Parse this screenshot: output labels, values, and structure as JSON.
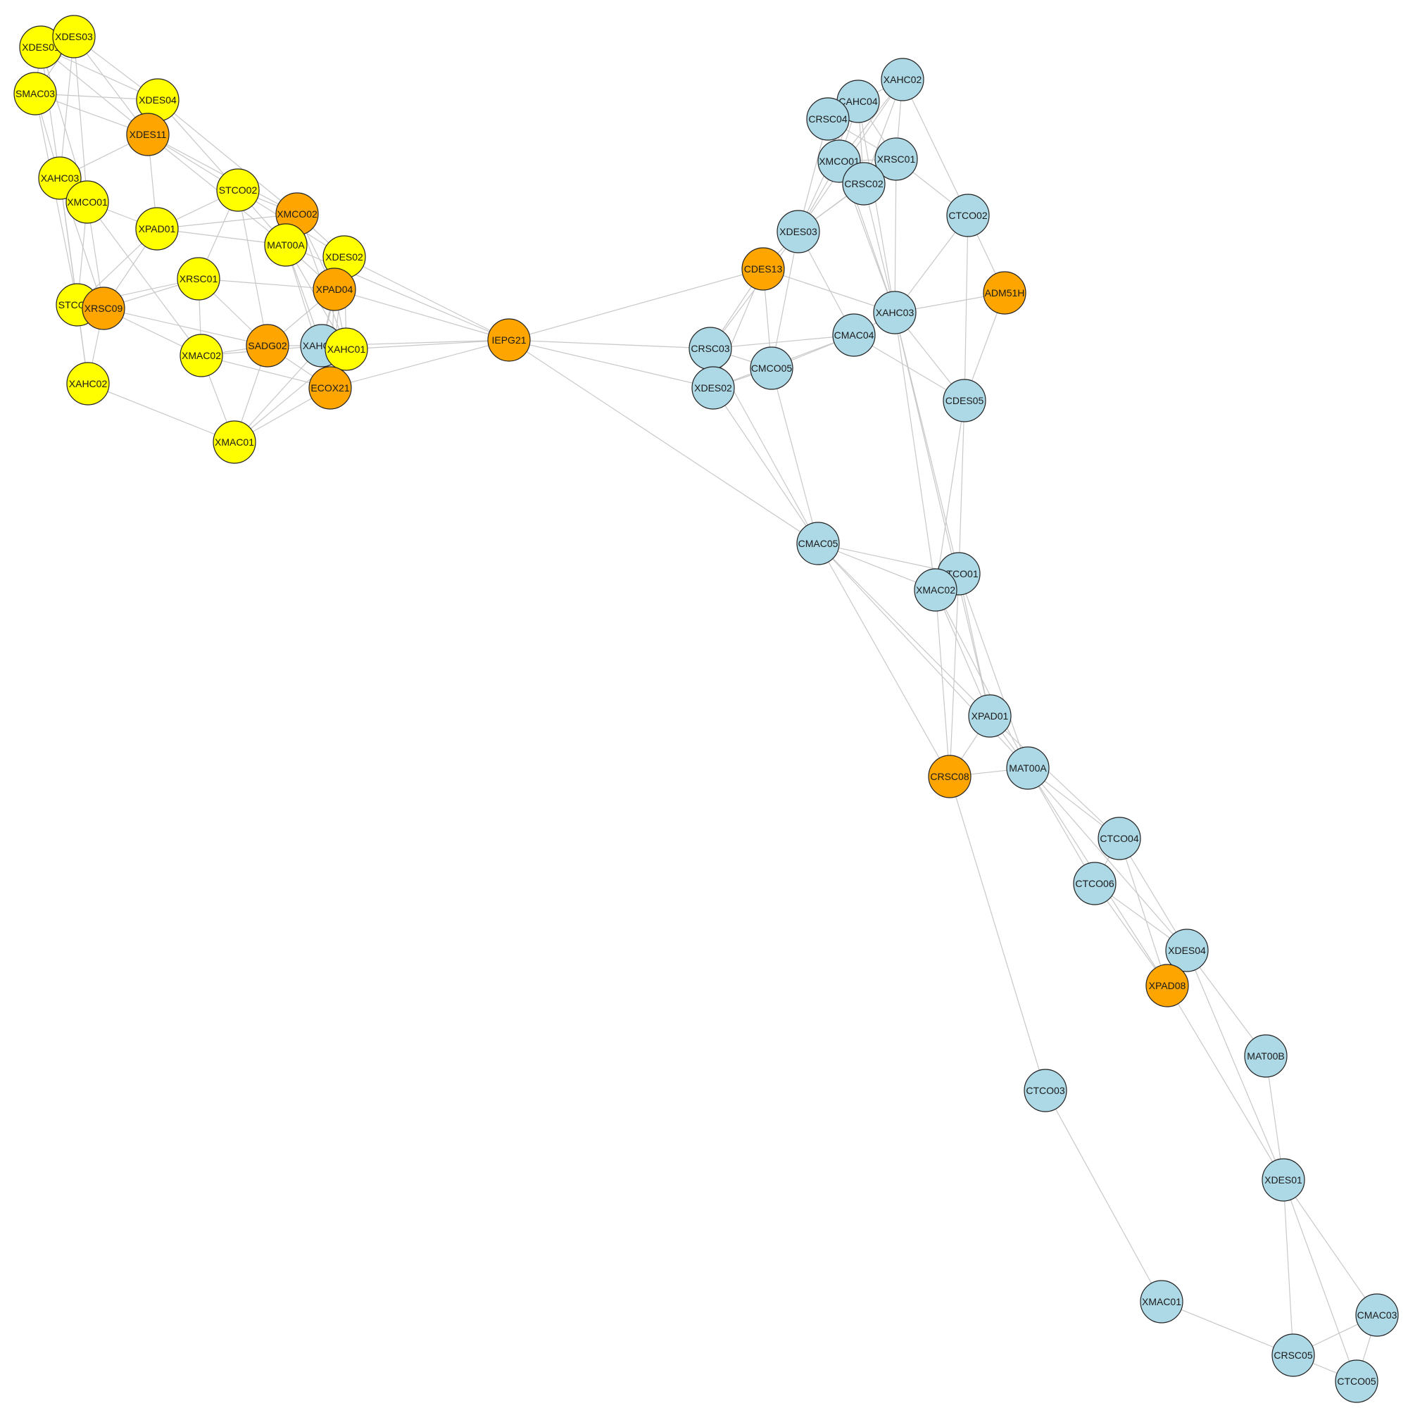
{
  "colors": {
    "yellow": "#ffff00",
    "orange": "#ffa500",
    "blue": "#add8e6"
  },
  "nodes": [
    {
      "id": "L_XDES01",
      "label": "XDES01",
      "color": "yellow"
    },
    {
      "id": "L_XDES03",
      "label": "XDES03",
      "color": "yellow"
    },
    {
      "id": "L_SMAC03",
      "label": "SMAC03",
      "color": "yellow"
    },
    {
      "id": "L_XDES04",
      "label": "XDES04",
      "color": "yellow"
    },
    {
      "id": "L_XDES11",
      "label": "XDES11",
      "color": "orange"
    },
    {
      "id": "L_XAHC03",
      "label": "XAHC03",
      "color": "yellow"
    },
    {
      "id": "L_XMCO01",
      "label": "XMCO01",
      "color": "yellow"
    },
    {
      "id": "L_STCO02",
      "label": "STCO02",
      "color": "yellow"
    },
    {
      "id": "L_XMCO02",
      "label": "XMCO02",
      "color": "orange"
    },
    {
      "id": "L_XPAD01",
      "label": "XPAD01",
      "color": "yellow"
    },
    {
      "id": "L_MAT00A",
      "label": "MAT00A",
      "color": "yellow"
    },
    {
      "id": "L_XDES02",
      "label": "XDES02",
      "color": "yellow"
    },
    {
      "id": "L_XRSC01",
      "label": "XRSC01",
      "color": "yellow"
    },
    {
      "id": "L_XPAD04",
      "label": "XPAD04",
      "color": "orange"
    },
    {
      "id": "L_STCO01",
      "label": "STCO01",
      "color": "yellow"
    },
    {
      "id": "L_XRSC09",
      "label": "XRSC09",
      "color": "orange"
    },
    {
      "id": "L_SADG02",
      "label": "SADG02",
      "color": "orange"
    },
    {
      "id": "L_XAHC04",
      "label": "XAHC04",
      "color": "blue"
    },
    {
      "id": "L_XAHC01",
      "label": "XAHC01",
      "color": "yellow"
    },
    {
      "id": "L_XMAC02",
      "label": "XMAC02",
      "color": "yellow"
    },
    {
      "id": "L_ECOX21",
      "label": "ECOX21",
      "color": "orange"
    },
    {
      "id": "L_XAHC02",
      "label": "XAHC02",
      "color": "yellow"
    },
    {
      "id": "L_XMAC01",
      "label": "XMAC01",
      "color": "yellow"
    },
    {
      "id": "IEPG21",
      "label": "IEPG21",
      "color": "orange"
    },
    {
      "id": "R_XAHC02",
      "label": "XAHC02",
      "color": "blue"
    },
    {
      "id": "R_CAHC04",
      "label": "CAHC04",
      "color": "blue"
    },
    {
      "id": "R_CRSC04",
      "label": "CRSC04",
      "color": "blue"
    },
    {
      "id": "R_XMCO01",
      "label": "XMCO01",
      "color": "blue"
    },
    {
      "id": "R_XRSC01",
      "label": "XRSC01",
      "color": "blue"
    },
    {
      "id": "R_CRSC02",
      "label": "CRSC02",
      "color": "blue"
    },
    {
      "id": "R_CTCO02",
      "label": "CTCO02",
      "color": "blue"
    },
    {
      "id": "R_XDES03",
      "label": "XDES03",
      "color": "blue"
    },
    {
      "id": "R_CDES13",
      "label": "CDES13",
      "color": "orange"
    },
    {
      "id": "R_ADM51H",
      "label": "ADM51H",
      "color": "orange"
    },
    {
      "id": "R_XAHC03",
      "label": "XAHC03",
      "color": "blue"
    },
    {
      "id": "R_CMAC04",
      "label": "CMAC04",
      "color": "blue"
    },
    {
      "id": "R_CRSC03",
      "label": "CRSC03",
      "color": "blue"
    },
    {
      "id": "R_CMCO05",
      "label": "CMCO05",
      "color": "blue"
    },
    {
      "id": "R_XDES02",
      "label": "XDES02",
      "color": "blue"
    },
    {
      "id": "R_CDES05",
      "label": "CDES05",
      "color": "blue"
    },
    {
      "id": "R_CMAC05",
      "label": "CMAC05",
      "color": "blue"
    },
    {
      "id": "R_CTCO01",
      "label": "CTCO01",
      "color": "blue"
    },
    {
      "id": "R_XMAC02",
      "label": "XMAC02",
      "color": "blue"
    },
    {
      "id": "R_XPAD01",
      "label": "XPAD01",
      "color": "blue"
    },
    {
      "id": "R_CRSC08",
      "label": "CRSC08",
      "color": "orange"
    },
    {
      "id": "R_MAT00A",
      "label": "MAT00A",
      "color": "blue"
    },
    {
      "id": "R_CTCO04",
      "label": "CTCO04",
      "color": "blue"
    },
    {
      "id": "R_CTCO06",
      "label": "CTCO06",
      "color": "blue"
    },
    {
      "id": "R_XDES04",
      "label": "XDES04",
      "color": "blue"
    },
    {
      "id": "R_XPAD08",
      "label": "XPAD08",
      "color": "orange"
    },
    {
      "id": "R_MAT00B",
      "label": "MAT00B",
      "color": "blue"
    },
    {
      "id": "R_CTCO03",
      "label": "CTCO03",
      "color": "blue"
    },
    {
      "id": "R_XDES01",
      "label": "XDES01",
      "color": "blue"
    },
    {
      "id": "R_XMAC01",
      "label": "XMAC01",
      "color": "blue"
    },
    {
      "id": "R_CMAC03",
      "label": "CMAC03",
      "color": "blue"
    },
    {
      "id": "R_CRSC05",
      "label": "CRSC05",
      "color": "blue"
    },
    {
      "id": "R_CTCO05",
      "label": "CTCO05",
      "color": "blue"
    }
  ],
  "edges": [
    [
      "L_XDES01",
      "L_XDES03"
    ],
    [
      "L_XDES01",
      "L_SMAC03"
    ],
    [
      "L_XDES01",
      "L_XDES11"
    ],
    [
      "L_XDES01",
      "L_XAHC03"
    ],
    [
      "L_XDES01",
      "L_XMCO01"
    ],
    [
      "L_XDES01",
      "L_XDES04"
    ],
    [
      "L_XDES03",
      "L_XDES04"
    ],
    [
      "L_XDES03",
      "L_XDES11"
    ],
    [
      "L_XDES03",
      "L_XAHC03"
    ],
    [
      "L_XDES03",
      "L_SMAC03"
    ],
    [
      "L_XDES03",
      "L_XMCO01"
    ],
    [
      "L_SMAC03",
      "L_XDES04"
    ],
    [
      "L_SMAC03",
      "L_XDES11"
    ],
    [
      "L_SMAC03",
      "L_XAHC03"
    ],
    [
      "L_SMAC03",
      "L_STCO01"
    ],
    [
      "L_XDES04",
      "L_XDES11"
    ],
    [
      "L_XDES04",
      "L_STCO02"
    ],
    [
      "L_XDES04",
      "L_XMCO02"
    ],
    [
      "L_XDES11",
      "L_XAHC03"
    ],
    [
      "L_XDES11",
      "L_STCO02"
    ],
    [
      "L_XDES11",
      "L_XPAD01"
    ],
    [
      "L_XDES11",
      "L_XMCO02"
    ],
    [
      "L_XDES11",
      "L_MAT00A"
    ],
    [
      "L_XAHC03",
      "L_XMCO01"
    ],
    [
      "L_XAHC03",
      "L_STCO01"
    ],
    [
      "L_XAHC03",
      "L_XRSC09"
    ],
    [
      "L_XAHC03",
      "L_XAHC02"
    ],
    [
      "L_XMCO01",
      "L_XRSC09"
    ],
    [
      "L_XMCO01",
      "L_XPAD01"
    ],
    [
      "L_XMCO01",
      "L_XMAC02"
    ],
    [
      "L_XMCO01",
      "L_STCO01"
    ],
    [
      "L_STCO02",
      "L_XMCO02"
    ],
    [
      "L_STCO02",
      "L_MAT00A"
    ],
    [
      "L_STCO02",
      "L_XPAD01"
    ],
    [
      "L_STCO02",
      "L_XRSC01"
    ],
    [
      "L_STCO02",
      "L_SADG02"
    ],
    [
      "L_STCO02",
      "L_XDES02"
    ],
    [
      "L_XMCO02",
      "L_MAT00A"
    ],
    [
      "L_XMCO02",
      "L_XDES02"
    ],
    [
      "L_XMCO02",
      "L_XPAD04"
    ],
    [
      "L_XMCO02",
      "L_IEPG21"
    ],
    [
      "L_XMCO02",
      "L_XAHC01"
    ],
    [
      "L_XPAD01",
      "L_XRSC09"
    ],
    [
      "L_XPAD01",
      "L_STCO01"
    ],
    [
      "L_XPAD01",
      "L_MAT00A"
    ],
    [
      "L_XPAD01",
      "L_XMCO02"
    ],
    [
      "L_MAT00A",
      "L_XAHC04"
    ],
    [
      "L_MAT00A",
      "L_XAHC01"
    ],
    [
      "L_MAT00A",
      "L_ECOX21"
    ],
    [
      "L_MAT00A",
      "L_XPAD04"
    ],
    [
      "L_MAT00A",
      "IEPG21"
    ],
    [
      "L_XDES02",
      "L_XPAD04"
    ],
    [
      "L_XDES02",
      "L_XAHC04"
    ],
    [
      "L_XDES02",
      "L_XAHC01"
    ],
    [
      "L_XDES02",
      "IEPG21"
    ],
    [
      "L_XDES02",
      "L_ECOX21"
    ],
    [
      "L_XRSC01",
      "L_XRSC09"
    ],
    [
      "L_XRSC01",
      "L_XMAC02"
    ],
    [
      "L_XRSC01",
      "L_XPAD04"
    ],
    [
      "L_XRSC01",
      "L_SADG02"
    ],
    [
      "L_XRSC01",
      "L_STCO01"
    ],
    [
      "L_XPAD04",
      "L_XAHC04"
    ],
    [
      "L_XPAD04",
      "L_XAHC01"
    ],
    [
      "L_XPAD04",
      "L_SADG02"
    ],
    [
      "L_XPAD04",
      "L_ECOX21"
    ],
    [
      "L_XPAD04",
      "IEPG21"
    ],
    [
      "L_STCO01",
      "L_XRSC09"
    ],
    [
      "L_STCO01",
      "L_XAHC02"
    ],
    [
      "L_XRSC09",
      "L_XMAC02"
    ],
    [
      "L_XRSC09",
      "L_XAHC02"
    ],
    [
      "L_XRSC09",
      "L_SADG02"
    ],
    [
      "L_SADG02",
      "L_XAHC04"
    ],
    [
      "L_SADG02",
      "L_XMAC01"
    ],
    [
      "L_SADG02",
      "L_XMAC02"
    ],
    [
      "L_SADG02",
      "L_ECOX21"
    ],
    [
      "L_XAHC04",
      "L_XAHC01"
    ],
    [
      "L_XAHC04",
      "L_ECOX21"
    ],
    [
      "L_XAHC04",
      "L_XMAC01"
    ],
    [
      "L_XAHC04",
      "IEPG21"
    ],
    [
      "L_XAHC01",
      "L_ECOX21"
    ],
    [
      "L_XAHC01",
      "IEPG21"
    ],
    [
      "L_XAHC01",
      "L_XMAC01"
    ],
    [
      "L_XMAC02",
      "L_XMAC01"
    ],
    [
      "L_XMAC02",
      "L_ECOX21"
    ],
    [
      "L_XMAC02",
      "L_XAHC04"
    ],
    [
      "L_ECOX21",
      "L_XMAC01"
    ],
    [
      "L_ECOX21",
      "IEPG21"
    ],
    [
      "L_XAHC02",
      "L_XMAC01"
    ],
    [
      "IEPG21",
      "R_CDES13"
    ],
    [
      "IEPG21",
      "R_CRSC03"
    ],
    [
      "IEPG21",
      "R_XDES02"
    ],
    [
      "IEPG21",
      "R_CMAC05"
    ],
    [
      "R_XAHC02",
      "R_CAHC04"
    ],
    [
      "R_XAHC02",
      "R_XMCO01"
    ],
    [
      "R_XAHC02",
      "R_XRSC01"
    ],
    [
      "R_XAHC02",
      "R_CTCO02"
    ],
    [
      "R_XAHC02",
      "R_XDES03"
    ],
    [
      "R_XAHC02",
      "R_CRSC02"
    ],
    [
      "R_CAHC04",
      "R_CRSC04"
    ],
    [
      "R_CAHC04",
      "R_XRSC01"
    ],
    [
      "R_CAHC04",
      "R_XMCO01"
    ],
    [
      "R_CAHC04",
      "R_XDES03"
    ],
    [
      "R_CAHC04",
      "R_XAHC03"
    ],
    [
      "R_CAHC04",
      "R_CRSC02"
    ],
    [
      "R_CRSC04",
      "R_XMCO01"
    ],
    [
      "R_CRSC04",
      "R_XRSC01"
    ],
    [
      "R_CRSC04",
      "R_CRSC02"
    ],
    [
      "R_CRSC04",
      "R_XDES03"
    ],
    [
      "R_CRSC04",
      "R_XAHC03"
    ],
    [
      "R_XMCO01",
      "R_CRSC02"
    ],
    [
      "R_XMCO01",
      "R_XDES03"
    ],
    [
      "R_XMCO01",
      "R_XRSC01"
    ],
    [
      "R_XMCO01",
      "R_XAHC03"
    ],
    [
      "R_XRSC01",
      "R_CRSC02"
    ],
    [
      "R_XRSC01",
      "R_CTCO02"
    ],
    [
      "R_XRSC01",
      "R_XAHC03"
    ],
    [
      "R_XRSC01",
      "R_XDES03"
    ],
    [
      "R_CRSC02",
      "R_XDES03"
    ],
    [
      "R_CRSC02",
      "R_XAHC03"
    ],
    [
      "R_CTCO02",
      "R_XAHC03"
    ],
    [
      "R_CTCO02",
      "R_ADM51H"
    ],
    [
      "R_CTCO02",
      "R_CDES05"
    ],
    [
      "R_XDES03",
      "R_CDES13"
    ],
    [
      "R_XDES03",
      "R_CMAC04"
    ],
    [
      "R_XDES03",
      "R_CMCO05"
    ],
    [
      "R_XDES03",
      "R_CRSC03"
    ],
    [
      "R_CDES13",
      "R_CRSC03"
    ],
    [
      "R_CDES13",
      "R_XDES02"
    ],
    [
      "R_CDES13",
      "R_XAHC03"
    ],
    [
      "R_CDES13",
      "R_CMCO05"
    ],
    [
      "R_ADM51H",
      "R_XAHC03"
    ],
    [
      "R_ADM51H",
      "R_CDES05"
    ],
    [
      "R_XAHC03",
      "R_CDES05"
    ],
    [
      "R_XAHC03",
      "R_CMAC04"
    ],
    [
      "R_XAHC03",
      "R_XMAC02"
    ],
    [
      "R_XAHC03",
      "R_CTCO01"
    ],
    [
      "R_XAHC03",
      "R_XPAD01"
    ],
    [
      "R_CMAC04",
      "R_CRSC03"
    ],
    [
      "R_CMAC04",
      "R_CMCO05"
    ],
    [
      "R_CMAC04",
      "R_XDES02"
    ],
    [
      "R_CMAC04",
      "R_CDES05"
    ],
    [
      "R_CRSC03",
      "R_XDES02"
    ],
    [
      "R_CRSC03",
      "R_CMCO05"
    ],
    [
      "R_CRSC03",
      "R_CMAC05"
    ],
    [
      "R_CMCO05",
      "R_XDES02"
    ],
    [
      "R_CMCO05",
      "R_CMAC05"
    ],
    [
      "R_XDES02",
      "R_CMAC05"
    ],
    [
      "R_CDES05",
      "R_CTCO01"
    ],
    [
      "R_CDES05",
      "R_XMAC02"
    ],
    [
      "R_CMAC05",
      "R_CTCO01"
    ],
    [
      "R_CMAC05",
      "R_XMAC02"
    ],
    [
      "R_CMAC05",
      "R_XPAD01"
    ],
    [
      "R_CMAC05",
      "R_CRSC08"
    ],
    [
      "R_CMAC05",
      "R_MAT00A"
    ],
    [
      "R_CTCO01",
      "R_XMAC02"
    ],
    [
      "R_CTCO01",
      "R_XPAD01"
    ],
    [
      "R_CTCO01",
      "R_MAT00A"
    ],
    [
      "R_CTCO01",
      "R_CRSC08"
    ],
    [
      "R_XMAC02",
      "R_XPAD01"
    ],
    [
      "R_XMAC02",
      "R_MAT00A"
    ],
    [
      "R_XMAC02",
      "R_CRSC08"
    ],
    [
      "R_XPAD01",
      "R_MAT00A"
    ],
    [
      "R_XPAD01",
      "R_CRSC08"
    ],
    [
      "R_XPAD01",
      "R_CTCO04"
    ],
    [
      "R_CRSC08",
      "R_MAT00A"
    ],
    [
      "R_CRSC08",
      "R_CTCO03"
    ],
    [
      "R_MAT00A",
      "R_CTCO04"
    ],
    [
      "R_MAT00A",
      "R_CTCO06"
    ],
    [
      "R_MAT00A",
      "R_XDES04"
    ],
    [
      "R_MAT00A",
      "R_XPAD08"
    ],
    [
      "R_CTCO04",
      "R_XDES04"
    ],
    [
      "R_CTCO04",
      "R_XPAD08"
    ],
    [
      "R_CTCO04",
      "R_CTCO06"
    ],
    [
      "R_CTCO06",
      "R_XDES04"
    ],
    [
      "R_CTCO06",
      "R_XPAD08"
    ],
    [
      "R_XDES04",
      "R_XPAD08"
    ],
    [
      "R_XDES04",
      "R_MAT00B"
    ],
    [
      "R_XDES04",
      "R_XDES01"
    ],
    [
      "R_XPAD08",
      "R_XDES01"
    ],
    [
      "R_MAT00B",
      "R_XDES01"
    ],
    [
      "R_XDES01",
      "R_CRSC05"
    ],
    [
      "R_XDES01",
      "R_CMAC03"
    ],
    [
      "R_XDES01",
      "R_CTCO05"
    ],
    [
      "R_CTCO03",
      "R_XMAC01"
    ],
    [
      "R_XMAC01",
      "R_CRSC05"
    ],
    [
      "R_CRSC05",
      "R_CMAC03"
    ],
    [
      "R_CRSC05",
      "R_CTCO05"
    ],
    [
      "R_CMAC03",
      "R_CTCO05"
    ]
  ]
}
